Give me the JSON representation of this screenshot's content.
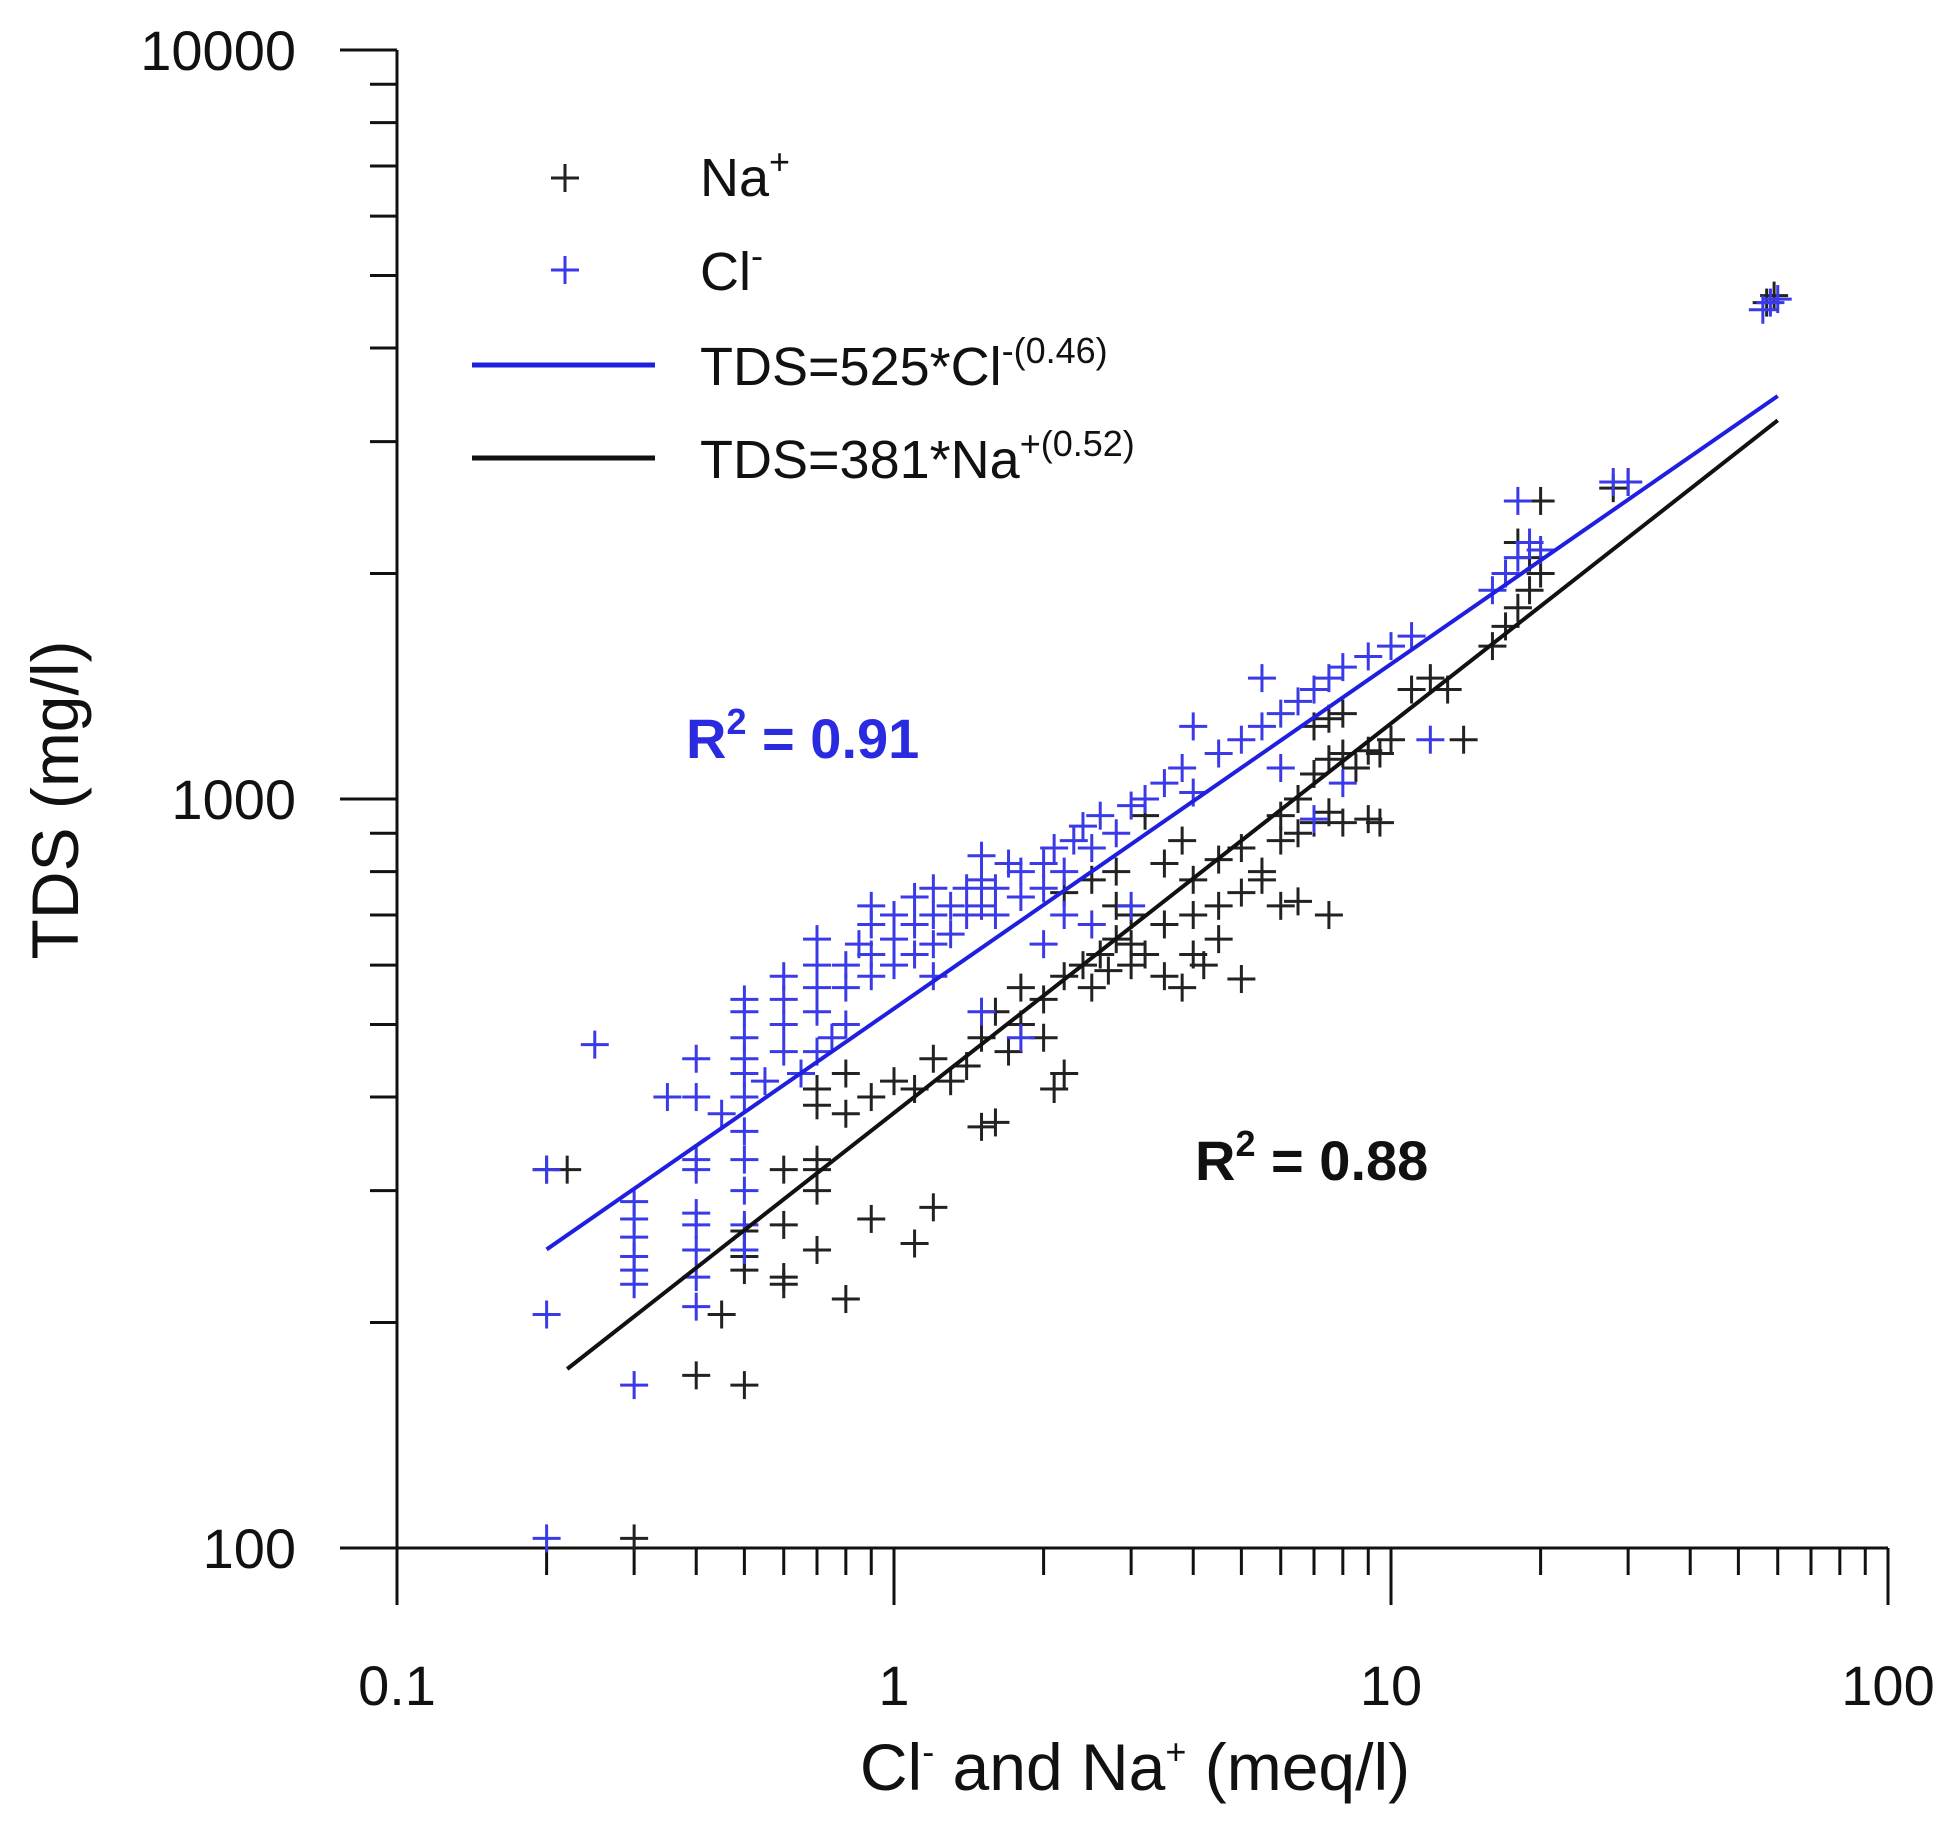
{
  "chart_data": {
    "type": "scatter",
    "x_scale": "log",
    "y_scale": "log",
    "xlim": [
      0.1,
      100
    ],
    "ylim": [
      100,
      10000
    ],
    "x_ticks": [
      {
        "value": 0.1,
        "label": "0.1"
      },
      {
        "value": 1,
        "label": "1"
      },
      {
        "value": 10,
        "label": "10"
      },
      {
        "value": 100,
        "label": "100"
      }
    ],
    "y_ticks": [
      {
        "value": 100,
        "label": "100"
      },
      {
        "value": 1000,
        "label": "1000"
      },
      {
        "value": 10000,
        "label": "10000"
      }
    ],
    "xlabel": {
      "part1": "Cl",
      "sup1": "-",
      "part2": " and Na",
      "sup2": "+",
      "part3": " (meq/l)"
    },
    "ylabel": "TDS (mg/l)",
    "colors": {
      "na": "#222222",
      "cl": "#3a3ae8",
      "cl_line": "#1f1fe0",
      "na_line": "#111111",
      "r2_cl": "#2a2ae0",
      "r2_na": "#111111",
      "axis": "#111111"
    },
    "legend": {
      "position": "top-left",
      "entries": [
        {
          "label": "Na",
          "sup": "+",
          "symbol": "plus",
          "color": "#222222"
        },
        {
          "label": "Cl",
          "sup": "-",
          "symbol": "plus",
          "color": "#3a3ae8"
        },
        {
          "label": "TDS=525*Cl",
          "sup": "-(0.46)",
          "symbol": "line",
          "color": "#1f1fe0"
        },
        {
          "label": "TDS=381*Na",
          "sup": "+(0.52)",
          "symbol": "line",
          "color": "#111111"
        }
      ]
    },
    "annotations": [
      {
        "id": "r2_cl",
        "text": "R",
        "sup": "2",
        "rest": " = 0.91",
        "color": "#2a2ae0"
      },
      {
        "id": "r2_na",
        "text": "R",
        "sup": "2",
        "rest": " = 0.88",
        "color": "#111111"
      }
    ],
    "fits": [
      {
        "name": "TDS=525*Cl-(0.46)",
        "series": "Cl-",
        "coef": 525,
        "exp": 0.46,
        "x_range": [
          0.2,
          60
        ]
      },
      {
        "name": "TDS=381*Na+(0.52)",
        "series": "Na+",
        "coef": 381,
        "exp": 0.52,
        "x_range": [
          0.22,
          60
        ]
      }
    ],
    "series": [
      {
        "name": "Na+",
        "points": [
          [
            0.2,
            320
          ],
          [
            0.22,
            320
          ],
          [
            0.3,
            103
          ],
          [
            0.4,
            170
          ],
          [
            0.45,
            205
          ],
          [
            0.5,
            165
          ],
          [
            0.5,
            235
          ],
          [
            0.5,
            245
          ],
          [
            0.5,
            265
          ],
          [
            0.6,
            225
          ],
          [
            0.6,
            230
          ],
          [
            0.6,
            270
          ],
          [
            0.6,
            320
          ],
          [
            0.7,
            250
          ],
          [
            0.7,
            300
          ],
          [
            0.7,
            320
          ],
          [
            0.7,
            330
          ],
          [
            0.8,
            215
          ],
          [
            0.9,
            275
          ],
          [
            1.1,
            255
          ],
          [
            1.2,
            285
          ],
          [
            0.7,
            390
          ],
          [
            0.7,
            410
          ],
          [
            0.8,
            380
          ],
          [
            0.8,
            430
          ],
          [
            0.9,
            400
          ],
          [
            1.0,
            420
          ],
          [
            1.1,
            410
          ],
          [
            1.2,
            450
          ],
          [
            1.3,
            420
          ],
          [
            1.4,
            440
          ],
          [
            1.5,
            365
          ],
          [
            1.6,
            370
          ],
          [
            1.7,
            460
          ],
          [
            1.8,
            500
          ],
          [
            2.0,
            480
          ],
          [
            2.1,
            410
          ],
          [
            2.2,
            430
          ],
          [
            1.5,
            480
          ],
          [
            1.6,
            520
          ],
          [
            1.8,
            560
          ],
          [
            2.0,
            540
          ],
          [
            2.2,
            580
          ],
          [
            2.4,
            600
          ],
          [
            2.5,
            560
          ],
          [
            2.6,
            620
          ],
          [
            2.7,
            590
          ],
          [
            2.8,
            650
          ],
          [
            3.0,
            640
          ],
          [
            3.0,
            600
          ],
          [
            3.2,
            620
          ],
          [
            3.5,
            580
          ],
          [
            3.8,
            560
          ],
          [
            4.0,
            620
          ],
          [
            4.2,
            600
          ],
          [
            4.5,
            650
          ],
          [
            5.0,
            575
          ],
          [
            4.0,
            700
          ],
          [
            4.5,
            720
          ],
          [
            5.0,
            750
          ],
          [
            5.5,
            780
          ],
          [
            6.0,
            720
          ],
          [
            6.5,
            730
          ],
          [
            7.5,
            700
          ],
          [
            3.0,
            700
          ],
          [
            3.5,
            680
          ],
          [
            2.8,
            720
          ],
          [
            4.0,
            780
          ],
          [
            4.5,
            830
          ],
          [
            5.0,
            860
          ],
          [
            5.5,
            800
          ],
          [
            6.0,
            880
          ],
          [
            6.5,
            900
          ],
          [
            7.0,
            930
          ],
          [
            7.5,
            960
          ],
          [
            8.0,
            930
          ],
          [
            9.0,
            940
          ],
          [
            9.5,
            930
          ],
          [
            6.0,
            950
          ],
          [
            6.5,
            1000
          ],
          [
            7.0,
            1080
          ],
          [
            7.5,
            1130
          ],
          [
            8.0,
            1150
          ],
          [
            8.5,
            1100
          ],
          [
            9.0,
            1160
          ],
          [
            9.5,
            1150
          ],
          [
            10,
            1200
          ],
          [
            7.0,
            1250
          ],
          [
            7.5,
            1280
          ],
          [
            8.0,
            1300
          ],
          [
            11,
            1400
          ],
          [
            12,
            1450
          ],
          [
            13,
            1400
          ],
          [
            14,
            1200
          ],
          [
            3.5,
            820
          ],
          [
            3.8,
            880
          ],
          [
            3.2,
            950
          ],
          [
            2.8,
            800
          ],
          [
            2.5,
            780
          ],
          [
            2.2,
            750
          ],
          [
            16,
            1600
          ],
          [
            17,
            1700
          ],
          [
            18,
            1800
          ],
          [
            19,
            1900
          ],
          [
            20,
            2000
          ],
          [
            19,
            2100
          ],
          [
            18,
            2200
          ],
          [
            20,
            2500
          ],
          [
            28,
            2600
          ],
          [
            30,
            2650
          ],
          [
            57,
            4600
          ],
          [
            59,
            4700
          ]
        ]
      },
      {
        "name": "Cl-",
        "points": [
          [
            0.2,
            103
          ],
          [
            0.2,
            205
          ],
          [
            0.2,
            320
          ],
          [
            0.25,
            470
          ],
          [
            0.3,
            165
          ],
          [
            0.3,
            225
          ],
          [
            0.3,
            235
          ],
          [
            0.3,
            245
          ],
          [
            0.3,
            260
          ],
          [
            0.3,
            275
          ],
          [
            0.3,
            290
          ],
          [
            0.35,
            400
          ],
          [
            0.4,
            210
          ],
          [
            0.4,
            230
          ],
          [
            0.4,
            250
          ],
          [
            0.4,
            270
          ],
          [
            0.4,
            280
          ],
          [
            0.4,
            320
          ],
          [
            0.4,
            330
          ],
          [
            0.4,
            400
          ],
          [
            0.4,
            450
          ],
          [
            0.45,
            380
          ],
          [
            0.5,
            250
          ],
          [
            0.5,
            270
          ],
          [
            0.5,
            300
          ],
          [
            0.5,
            330
          ],
          [
            0.5,
            360
          ],
          [
            0.5,
            400
          ],
          [
            0.5,
            430
          ],
          [
            0.5,
            450
          ],
          [
            0.5,
            480
          ],
          [
            0.5,
            520
          ],
          [
            0.5,
            540
          ],
          [
            0.55,
            420
          ],
          [
            0.6,
            460
          ],
          [
            0.6,
            500
          ],
          [
            0.6,
            540
          ],
          [
            0.6,
            580
          ],
          [
            0.65,
            430
          ],
          [
            0.7,
            460
          ],
          [
            0.7,
            520
          ],
          [
            0.7,
            560
          ],
          [
            0.7,
            600
          ],
          [
            0.7,
            650
          ],
          [
            0.75,
            480
          ],
          [
            0.8,
            500
          ],
          [
            0.8,
            560
          ],
          [
            0.8,
            600
          ],
          [
            0.85,
            640
          ],
          [
            0.9,
            580
          ],
          [
            0.9,
            620
          ],
          [
            0.9,
            680
          ],
          [
            0.9,
            720
          ],
          [
            1.0,
            600
          ],
          [
            1.0,
            650
          ],
          [
            1.0,
            700
          ],
          [
            1.1,
            620
          ],
          [
            1.1,
            680
          ],
          [
            1.1,
            740
          ],
          [
            1.2,
            640
          ],
          [
            1.2,
            700
          ],
          [
            1.2,
            760
          ],
          [
            1.3,
            660
          ],
          [
            1.3,
            720
          ],
          [
            1.4,
            700
          ],
          [
            1.4,
            760
          ],
          [
            1.5,
            720
          ],
          [
            1.5,
            780
          ],
          [
            1.5,
            840
          ],
          [
            1.6,
            700
          ],
          [
            1.6,
            760
          ],
          [
            1.7,
            820
          ],
          [
            1.8,
            740
          ],
          [
            1.8,
            800
          ],
          [
            2.0,
            760
          ],
          [
            2.0,
            820
          ],
          [
            2.1,
            860
          ],
          [
            2.2,
            800
          ],
          [
            2.3,
            880
          ],
          [
            2.4,
            920
          ],
          [
            2.5,
            860
          ],
          [
            2.6,
            950
          ],
          [
            2.8,
            900
          ],
          [
            3.0,
            980
          ],
          [
            3.2,
            1000
          ],
          [
            3.5,
            1050
          ],
          [
            3.8,
            1100
          ],
          [
            4.0,
            1020
          ],
          [
            4.5,
            1150
          ],
          [
            5.0,
            1200
          ],
          [
            5.5,
            1250
          ],
          [
            6.0,
            1300
          ],
          [
            6.5,
            1350
          ],
          [
            7.0,
            1400
          ],
          [
            7.5,
            1450
          ],
          [
            8.0,
            1500
          ],
          [
            9.0,
            1550
          ],
          [
            10,
            1600
          ],
          [
            11,
            1650
          ],
          [
            12,
            1200
          ],
          [
            5.5,
            1450
          ],
          [
            4.0,
            1250
          ],
          [
            1.8,
            480
          ],
          [
            1.5,
            520
          ],
          [
            1.2,
            580
          ],
          [
            2.2,
            700
          ],
          [
            2.5,
            680
          ],
          [
            3.0,
            720
          ],
          [
            2.0,
            640
          ],
          [
            6.0,
            1100
          ],
          [
            7.0,
            940
          ],
          [
            8.0,
            1050
          ],
          [
            16,
            1900
          ],
          [
            17,
            2000
          ],
          [
            18,
            2100
          ],
          [
            19,
            2200
          ],
          [
            18,
            2500
          ],
          [
            20,
            2150
          ],
          [
            28,
            2650
          ],
          [
            30,
            2650
          ],
          [
            56,
            4500
          ],
          [
            58,
            4600
          ],
          [
            60,
            4650
          ]
        ]
      }
    ]
  }
}
